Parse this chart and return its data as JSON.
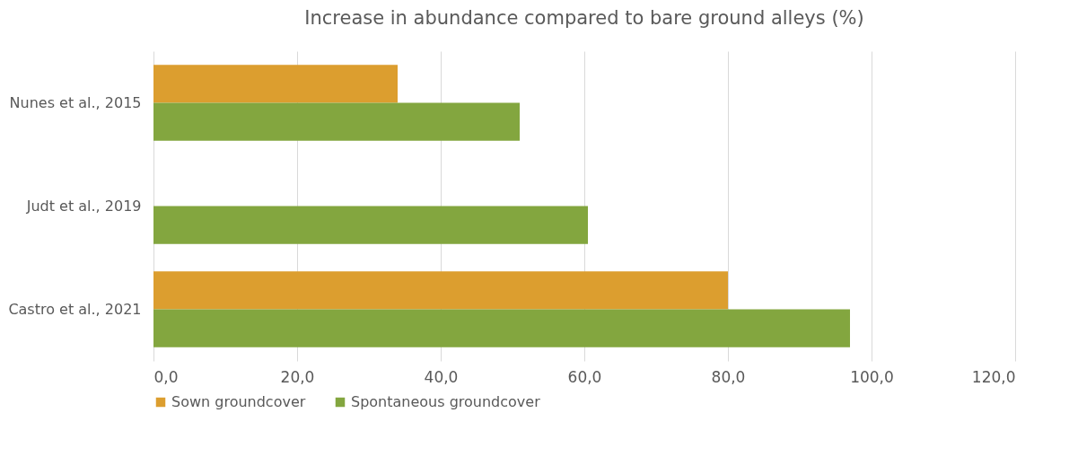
{
  "chart_data": {
    "type": "bar",
    "orientation": "horizontal",
    "title": "Increase in abundance compared to bare ground alleys (%)",
    "categories": [
      "Nunes et al., 2015",
      "Judt et al., 2019",
      "Castro et al., 2021"
    ],
    "series": [
      {
        "name": "Sown groundcover",
        "color": "#dc9e2f",
        "values": [
          34,
          null,
          80
        ]
      },
      {
        "name": "Spontaneous groundcover",
        "color": "#83a63f",
        "values": [
          51,
          60.5,
          97
        ]
      }
    ],
    "xlim": [
      0,
      120
    ],
    "xticks": [
      {
        "value": 0,
        "label": "0,0"
      },
      {
        "value": 20,
        "label": "20,0"
      },
      {
        "value": 40,
        "label": "40,0"
      },
      {
        "value": 60,
        "label": "60,0"
      },
      {
        "value": 80,
        "label": "80,0"
      },
      {
        "value": 100,
        "label": "100,0"
      },
      {
        "value": 120,
        "label": "120,0"
      }
    ],
    "grid": "x",
    "legend": "bottom"
  }
}
